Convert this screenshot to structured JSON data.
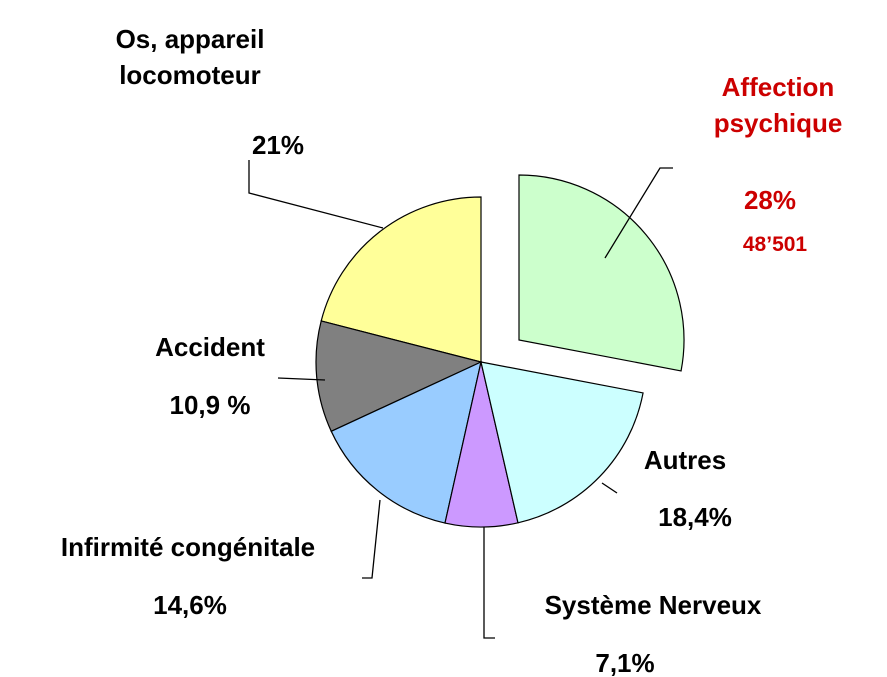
{
  "chart_data": {
    "type": "pie",
    "categories": [
      "Affection psychique",
      "Autres",
      "Système Nerveux",
      "Infirmité congénitale",
      "Accident",
      "Os, appareil locomoteur"
    ],
    "values": [
      28,
      18.4,
      7.1,
      14.6,
      10.9,
      21
    ],
    "value_labels": [
      "28%",
      "18,4%",
      "7,1%",
      "14,6%",
      "10,9 %",
      "21%"
    ],
    "colors": [
      "#ccffcc",
      "#ccffff",
      "#cc99ff",
      "#99ccff",
      "#808080",
      "#ffff99"
    ],
    "highlight_color": "#cc0000",
    "annotation": "48’501"
  }
}
